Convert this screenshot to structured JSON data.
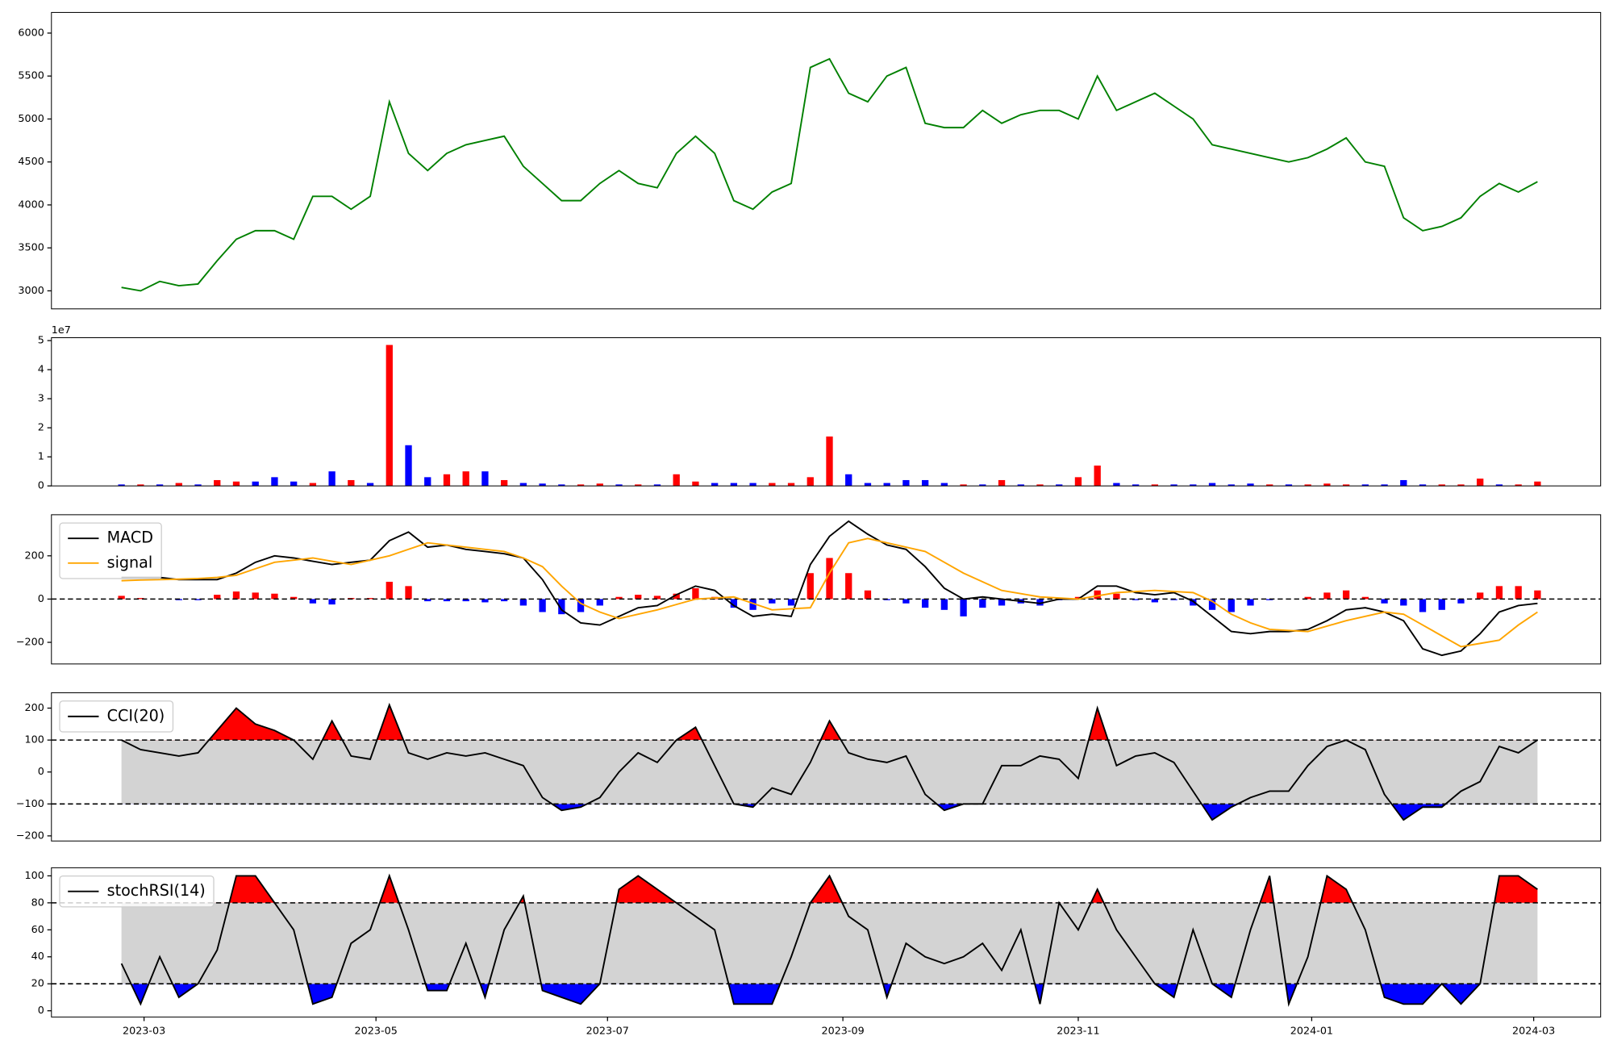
{
  "chart_data": [
    {
      "type": "line",
      "color": "green",
      "values": [
        3040,
        3000,
        3110,
        3060,
        3080,
        3350,
        3600,
        3700,
        3700,
        3600,
        4100,
        4100,
        3950,
        4100,
        5200,
        4600,
        4400,
        4600,
        4700,
        4750,
        4800,
        4450,
        4250,
        4050,
        4050,
        4250,
        4400,
        4250,
        4200,
        4600,
        4800,
        4600,
        4050,
        3950,
        4150,
        4250,
        5600,
        5700,
        5300,
        5200,
        5500,
        5600,
        4950,
        4900,
        4900,
        5100,
        4950,
        5050,
        5100,
        5100,
        5000,
        5500,
        5100,
        5200,
        5300,
        5150,
        5000,
        4700,
        4650,
        4600,
        4550,
        4500,
        4550,
        4650,
        4780,
        4500,
        4450,
        3850,
        3700,
        3750,
        3850,
        4100,
        4250,
        4150,
        4270
      ],
      "xlim": [
        -3.66,
        77.3
      ],
      "ylim": [
        2790,
        6240
      ],
      "yticks": [
        3000,
        3500,
        4000,
        4500,
        5000,
        5500,
        6000
      ]
    },
    {
      "type": "bar",
      "offset_label": "1e7",
      "values": [
        0.05,
        0.05,
        0.05,
        0.1,
        0.05,
        0.2,
        0.15,
        0.15,
        0.3,
        0.15,
        0.1,
        0.5,
        0.2,
        0.1,
        4.85,
        1.4,
        0.3,
        0.4,
        0.5,
        0.5,
        0.2,
        0.1,
        0.08,
        0.05,
        0.05,
        0.08,
        0.05,
        0.05,
        0.05,
        0.4,
        0.15,
        0.1,
        0.1,
        0.1,
        0.1,
        0.1,
        0.3,
        1.7,
        0.4,
        0.1,
        0.1,
        0.2,
        0.2,
        0.1,
        0.05,
        0.05,
        0.2,
        0.05,
        0.05,
        0.05,
        0.3,
        0.7,
        0.1,
        0.05,
        0.05,
        0.05,
        0.05,
        0.1,
        0.05,
        0.08,
        0.05,
        0.05,
        0.05,
        0.08,
        0.05,
        0.05,
        0.05,
        0.2,
        0.05,
        0.05,
        0.05,
        0.25,
        0.05,
        0.05,
        0.15
      ],
      "bar_colors": [
        "blue",
        "red",
        "blue",
        "red",
        "blue",
        "red",
        "red",
        "blue",
        "blue",
        "blue",
        "red",
        "blue",
        "red",
        "blue",
        "red",
        "blue",
        "blue",
        "red",
        "red",
        "blue",
        "red",
        "blue",
        "blue",
        "blue",
        "red",
        "red",
        "blue",
        "red",
        "blue",
        "red",
        "red",
        "blue",
        "blue",
        "blue",
        "red",
        "red",
        "red",
        "red",
        "blue",
        "blue",
        "blue",
        "blue",
        "blue",
        "blue",
        "red",
        "blue",
        "red",
        "blue",
        "red",
        "blue",
        "red",
        "red",
        "blue",
        "blue",
        "red",
        "blue",
        "blue",
        "blue",
        "blue",
        "blue",
        "red",
        "blue",
        "red",
        "red",
        "red",
        "blue",
        "blue",
        "blue",
        "blue",
        "red",
        "red",
        "red",
        "blue",
        "red",
        "red"
      ],
      "xlim": [
        -3.66,
        77.3
      ],
      "ylim": [
        0,
        5.1
      ],
      "yticks": [
        0,
        1,
        2,
        3,
        4,
        5
      ]
    },
    {
      "type": "macd",
      "legend": "upper left",
      "zero_line": 0,
      "series": [
        {
          "name": "MACD",
          "color": "black",
          "values": [
            100,
            100,
            100,
            90,
            90,
            90,
            120,
            170,
            200,
            190,
            175,
            160,
            170,
            180,
            270,
            310,
            240,
            250,
            230,
            220,
            210,
            190,
            90,
            -50,
            -110,
            -120,
            -80,
            -40,
            -30,
            20,
            60,
            40,
            -30,
            -80,
            -70,
            -80,
            160,
            290,
            360,
            300,
            250,
            230,
            150,
            50,
            0,
            10,
            0,
            -10,
            -20,
            0,
            0,
            60,
            60,
            30,
            20,
            30,
            -10,
            -80,
            -150,
            -160,
            -150,
            -150,
            -140,
            -100,
            -50,
            -40,
            -60,
            -100,
            -230,
            -260,
            -240,
            -160,
            -60,
            -30,
            -20
          ]
        },
        {
          "name": "signal",
          "color": "orange",
          "values": [
            85,
            88,
            90,
            92,
            95,
            100,
            110,
            140,
            170,
            180,
            190,
            175,
            160,
            180,
            200,
            230,
            260,
            250,
            240,
            230,
            220,
            190,
            150,
            60,
            -20,
            -60,
            -90,
            -70,
            -50,
            -25,
            0,
            5,
            10,
            -20,
            -50,
            -45,
            -40,
            120,
            260,
            280,
            260,
            240,
            220,
            170,
            120,
            80,
            40,
            25,
            10,
            5,
            0,
            15,
            30,
            35,
            40,
            35,
            30,
            -10,
            -70,
            -110,
            -140,
            -145,
            -150,
            -125,
            -100,
            -80,
            -60,
            -70,
            -120,
            -170,
            -220,
            -205,
            -190,
            -120,
            -60
          ]
        }
      ],
      "histogram": {
        "up_color": "red",
        "down_color": "blue",
        "values": [
          15,
          5,
          0,
          -5,
          -5,
          20,
          35,
          30,
          25,
          10,
          -20,
          -25,
          5,
          5,
          80,
          60,
          -10,
          -10,
          -10,
          -15,
          -10,
          -30,
          -60,
          -70,
          -60,
          -30,
          10,
          20,
          15,
          25,
          50,
          10,
          -40,
          -50,
          -20,
          -30,
          120,
          190,
          120,
          40,
          -5,
          -20,
          -40,
          -50,
          -80,
          -40,
          -30,
          -20,
          -30,
          -5,
          10,
          40,
          25,
          -5,
          -15,
          -5,
          -30,
          -50,
          -60,
          -30,
          -5,
          0,
          10,
          30,
          40,
          10,
          -20,
          -30,
          -60,
          -50,
          -20,
          30,
          60,
          60,
          40
        ]
      },
      "xlim": [
        -3.66,
        77.3
      ],
      "ylim": [
        -300,
        390
      ],
      "yticks": [
        {
          "value": -200,
          "label": "−200"
        },
        0,
        200
      ]
    },
    {
      "type": "oscillator",
      "legend": "upper left",
      "upper": 100,
      "lower": -100,
      "band_color": "lightgray",
      "over_color": "red",
      "under_color": "blue",
      "series": [
        {
          "name": "CCI(20)",
          "color": "black",
          "values": [
            100,
            70,
            60,
            50,
            60,
            130,
            200,
            150,
            130,
            100,
            40,
            160,
            50,
            40,
            210,
            60,
            40,
            60,
            50,
            60,
            40,
            20,
            -80,
            -120,
            -110,
            -80,
            0,
            60,
            30,
            100,
            140,
            20,
            -100,
            -110,
            -50,
            -70,
            30,
            160,
            60,
            40,
            30,
            50,
            -70,
            -120,
            -100,
            -100,
            20,
            20,
            50,
            40,
            -20,
            200,
            20,
            50,
            60,
            30,
            -60,
            -150,
            -110,
            -80,
            -60,
            -60,
            20,
            80,
            100,
            70,
            -70,
            -150,
            -110,
            -110,
            -60,
            -30,
            80,
            60,
            100
          ]
        }
      ],
      "xlim": [
        -3.66,
        77.3
      ],
      "ylim": [
        -216,
        248
      ],
      "yticks": [
        {
          "value": -200,
          "label": "−200"
        },
        {
          "value": -100,
          "label": "−100"
        },
        0,
        100,
        200
      ]
    },
    {
      "type": "oscillator",
      "legend": "upper left",
      "upper": 80,
      "lower": 20,
      "band_color": "lightgray",
      "over_color": "red",
      "under_color": "blue",
      "series": [
        {
          "name": "stochRSI(14)",
          "color": "black",
          "values": [
            35,
            5,
            40,
            10,
            20,
            45,
            100,
            100,
            80,
            60,
            5,
            10,
            50,
            60,
            100,
            60,
            15,
            15,
            50,
            10,
            60,
            85,
            15,
            10,
            5,
            20,
            90,
            100,
            90,
            80,
            70,
            60,
            5,
            5,
            5,
            40,
            80,
            100,
            70,
            60,
            10,
            50,
            40,
            35,
            40,
            50,
            30,
            60,
            5,
            80,
            60,
            90,
            60,
            40,
            20,
            10,
            60,
            20,
            10,
            60,
            100,
            5,
            40,
            100,
            90,
            60,
            10,
            5,
            5,
            20,
            5,
            20,
            100,
            100,
            90
          ]
        }
      ],
      "xlim": [
        -3.66,
        77.3
      ],
      "ylim": [
        -4.6,
        106
      ],
      "yticks": [
        0,
        20,
        40,
        60,
        80,
        100
      ],
      "xticks": [
        {
          "value": 1.18,
          "label": "2023-03"
        },
        {
          "value": 13.3,
          "label": "2023-05"
        },
        {
          "value": 25.4,
          "label": "2023-07"
        },
        {
          "value": 37.7,
          "label": "2023-09"
        },
        {
          "value": 50.0,
          "label": "2023-11"
        },
        {
          "value": 62.2,
          "label": "2024-01"
        },
        {
          "value": 73.8,
          "label": "2024-03"
        }
      ]
    }
  ]
}
